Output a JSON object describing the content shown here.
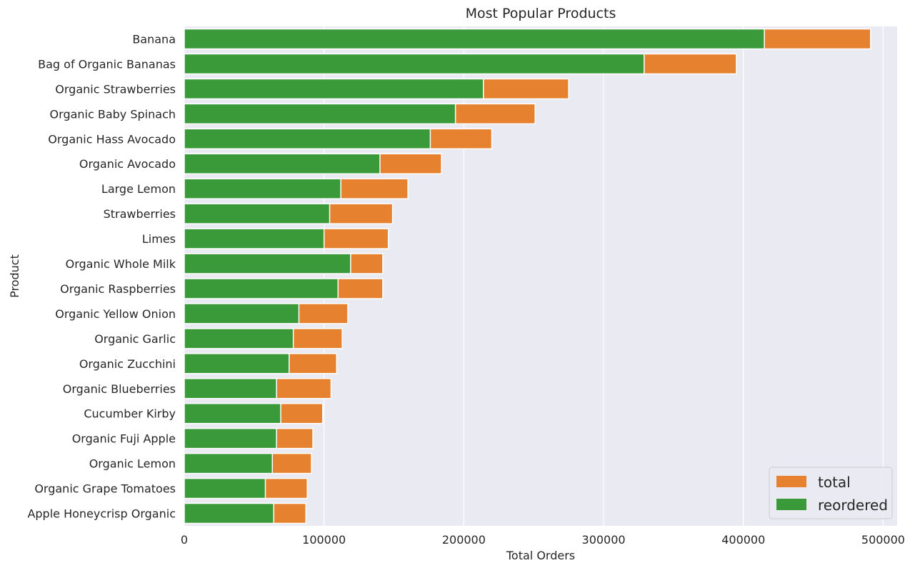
{
  "chart_data": {
    "type": "bar",
    "orientation": "horizontal",
    "stacked": false,
    "title": "Most Popular Products",
    "xlabel": "Total Orders",
    "ylabel": "Product",
    "xlim": [
      0,
      510000
    ],
    "xticks": [
      0,
      100000,
      200000,
      300000,
      400000,
      500000
    ],
    "grid": true,
    "legend_position": "bottom-right",
    "categories": [
      "Banana",
      "Bag of Organic Bananas",
      "Organic Strawberries",
      "Organic Baby Spinach",
      "Organic Hass Avocado",
      "Organic Avocado",
      "Large Lemon",
      "Strawberries",
      "Limes",
      "Organic Whole Milk",
      "Organic Raspberries",
      "Organic Yellow Onion",
      "Organic Garlic",
      "Organic Zucchini",
      "Organic Blueberries",
      "Cucumber Kirby",
      "Organic Fuji Apple",
      "Organic Lemon",
      "Organic Grape Tomatoes",
      "Apple Honeycrisp Organic"
    ],
    "series": [
      {
        "name": "total",
        "color": "#e6822f",
        "values": [
          491000,
          395000,
          275000,
          251000,
          220000,
          184000,
          160000,
          149000,
          146000,
          142000,
          142000,
          117000,
          113000,
          109000,
          105000,
          99000,
          92000,
          91000,
          88000,
          87000
        ]
      },
      {
        "name": "reordered",
        "color": "#3a9a3a",
        "values": [
          415000,
          329000,
          214000,
          194000,
          176000,
          140000,
          112000,
          104000,
          100000,
          119000,
          110000,
          82000,
          78000,
          75000,
          66000,
          69000,
          66000,
          63000,
          58000,
          64000
        ]
      }
    ]
  },
  "colors": {
    "plot_background": "#eaeaf2",
    "grid": "#ffffff",
    "text": "#262626"
  }
}
